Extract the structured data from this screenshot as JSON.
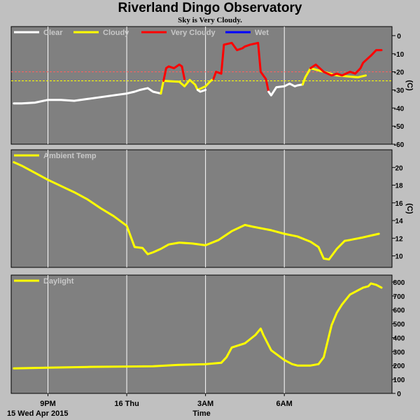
{
  "title": "Riverland Dingo Observatory",
  "subtitle": "Sky is Very Cloudy.",
  "colors": {
    "background": "#c0c0c0",
    "plot_bg": "#808080",
    "grid": "#ffffff",
    "clear": "#ffffff",
    "cloudy": "#ffff00",
    "very_cloudy": "#ff0000",
    "wet": "#0000ff",
    "threshold_very_cloudy": "#ff6060",
    "threshold_cloudy": "#ffff00"
  },
  "x_axis": {
    "label": "Time",
    "date_label": "15 Wed Apr 2015",
    "ticks": [
      "9PM",
      "16 Thu",
      "3AM",
      "6AM"
    ],
    "tick_hours": [
      21,
      24,
      27,
      30
    ],
    "range_hours": [
      19.6,
      34.1
    ]
  },
  "chart_data": [
    {
      "type": "line",
      "name": "sky",
      "ylabel": "(C)",
      "ylim": [
        -60,
        5
      ],
      "yticks": [
        0,
        -10,
        -20,
        -30,
        -40,
        -50,
        -60
      ],
      "legend": [
        "Clear",
        "Cloudy",
        "Very Cloudy",
        "Wet"
      ],
      "legend_placement": "top-left",
      "grid": true,
      "thresholds": [
        -20,
        -25
      ],
      "series": [
        {
          "name": "Clear",
          "x": [
            19.7,
            20.0,
            20.5,
            21.0,
            21.5,
            22.0,
            22.5,
            23.0,
            23.5,
            24.0,
            24.3,
            24.5,
            24.8,
            25.0,
            25.3
          ],
          "y": [
            -37.5,
            -37.5,
            -37,
            -35.5,
            -35.5,
            -36,
            -35,
            -34,
            -33,
            -32,
            -31,
            -30,
            -29,
            -31,
            -32
          ]
        },
        {
          "name": "Cloudy",
          "x": [
            25.3,
            25.4,
            26.0,
            26.2,
            26.4,
            26.6,
            26.7,
            27.0,
            27.2,
            27.3
          ],
          "y": [
            -32,
            -25,
            -25.5,
            -28,
            -24.5,
            -27,
            -30,
            -28,
            -25,
            -24
          ]
        },
        {
          "name": "Clear",
          "x": [
            26.7,
            26.8,
            27.0
          ],
          "y": [
            -30,
            -31,
            -30
          ]
        },
        {
          "name": "Very Cloudy",
          "x": [
            25.4,
            25.5,
            25.6,
            25.8,
            26.0,
            26.1,
            26.2
          ],
          "y": [
            -25,
            -18,
            -17,
            -18,
            -16,
            -17,
            -24
          ]
        },
        {
          "name": "Very Cloudy",
          "x": [
            27.3,
            27.4,
            27.6,
            27.7,
            28.0,
            28.2,
            28.4,
            28.5,
            28.7,
            29.0,
            29.1,
            29.3,
            29.4
          ],
          "y": [
            -24,
            -20,
            -21,
            -5,
            -4,
            -8,
            -7,
            -6,
            -5,
            -4,
            -20,
            -24,
            -31
          ]
        },
        {
          "name": "Clear",
          "x": [
            29.4,
            29.5,
            29.7,
            30.0,
            30.2,
            30.4,
            30.5,
            30.7
          ],
          "y": [
            -31,
            -33,
            -28.5,
            -28,
            -26.5,
            -28,
            -27.5,
            -27
          ]
        },
        {
          "name": "Cloudy",
          "x": [
            30.7,
            30.8,
            31.0,
            32.0,
            32.8,
            33.1
          ],
          "y": [
            -27,
            -23,
            -18,
            -22,
            -23,
            -22
          ]
        },
        {
          "name": "Very Cloudy",
          "x": [
            31.0,
            31.2,
            31.5,
            31.8,
            32.0,
            32.2,
            32.5,
            32.7,
            32.9,
            33.0,
            33.3,
            33.5,
            33.7
          ],
          "y": [
            -18,
            -16,
            -20,
            -22,
            -21,
            -22,
            -20,
            -21,
            -18,
            -15,
            -11,
            -8,
            -8
          ]
        }
      ]
    },
    {
      "type": "line",
      "name": "ambient",
      "ylabel": "(C)",
      "ylim": [
        8.7,
        22
      ],
      "yticks": [
        20,
        18,
        16,
        14,
        12,
        10
      ],
      "legend": [
        "Ambient Temp"
      ],
      "legend_placement": "top-left",
      "grid": true,
      "series": [
        {
          "name": "Ambient Temp",
          "x": [
            19.7,
            20.0,
            20.5,
            21.0,
            21.5,
            22.0,
            22.5,
            23.0,
            23.5,
            24.0,
            24.3,
            24.6,
            24.8,
            25.0,
            25.3,
            25.6,
            26.0,
            26.5,
            27.0,
            27.5,
            28.0,
            28.5,
            28.8,
            29.5,
            30.0,
            30.5,
            31.0,
            31.3,
            31.5,
            31.7,
            32.0,
            32.3,
            32.5,
            33.0,
            33.3,
            33.6
          ],
          "y": [
            20.6,
            20.2,
            19.4,
            18.6,
            17.9,
            17.2,
            16.4,
            15.4,
            14.5,
            13.4,
            11.0,
            10.9,
            10.2,
            10.4,
            10.8,
            11.3,
            11.5,
            11.4,
            11.2,
            11.8,
            12.8,
            13.5,
            13.3,
            12.9,
            12.5,
            12.2,
            11.6,
            11.0,
            9.7,
            9.6,
            10.8,
            11.7,
            11.8,
            12.1,
            12.3,
            12.5
          ]
        }
      ]
    },
    {
      "type": "line",
      "name": "daylight",
      "ylabel": "",
      "ylim": [
        0,
        850
      ],
      "yticks": [
        800,
        700,
        600,
        500,
        400,
        300,
        200,
        100,
        0
      ],
      "legend": [
        "Daylight"
      ],
      "legend_placement": "top-left",
      "grid": true,
      "series": [
        {
          "name": "Daylight",
          "x": [
            19.7,
            21.0,
            22.5,
            24.0,
            25.0,
            26.0,
            27.0,
            27.6,
            27.8,
            28.0,
            28.5,
            28.7,
            28.9,
            29.1,
            29.2,
            29.5,
            30.0,
            30.3,
            30.5,
            30.6,
            30.8,
            31.0,
            31.3,
            31.5,
            31.8,
            32.0,
            32.2,
            32.5,
            33.0,
            33.2,
            33.3,
            33.5,
            33.7
          ],
          "y": [
            180,
            185,
            190,
            193,
            195,
            205,
            210,
            220,
            260,
            330,
            360,
            390,
            420,
            465,
            420,
            310,
            240,
            210,
            200,
            200,
            200,
            200,
            210,
            260,
            490,
            580,
            640,
            710,
            760,
            770,
            790,
            780,
            760
          ]
        }
      ]
    }
  ]
}
